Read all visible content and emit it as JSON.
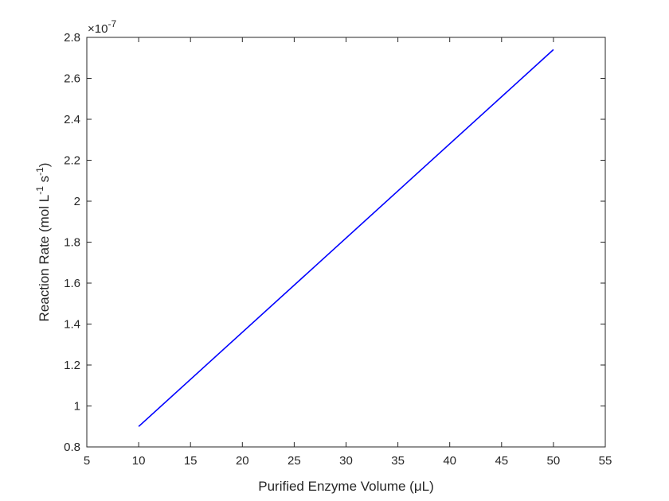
{
  "chart_data": {
    "type": "line",
    "title": "",
    "xlabel": "Purified Enzyme Volume (μL)",
    "ylabel_parts": {
      "main": "Reaction Rate (mol L",
      "exp1": "-1",
      "mid": " s",
      "exp2": "-1",
      "end": ")"
    },
    "y_multiplier": {
      "base": "×10",
      "exponent": "-7"
    },
    "xlim": [
      5,
      55
    ],
    "ylim": [
      0.8,
      2.8
    ],
    "xticks": [
      5,
      10,
      15,
      20,
      25,
      30,
      35,
      40,
      45,
      50,
      55
    ],
    "yticks": [
      0.8,
      1.0,
      1.2,
      1.4,
      1.6,
      1.8,
      2.0,
      2.2,
      2.4,
      2.6,
      2.8
    ],
    "xtick_labels": [
      "5",
      "10",
      "15",
      "20",
      "25",
      "30",
      "35",
      "40",
      "45",
      "50",
      "55"
    ],
    "ytick_labels": [
      "0.8",
      "1",
      "1.2",
      "1.4",
      "1.6",
      "1.8",
      "2",
      "2.2",
      "2.4",
      "2.6",
      "2.8"
    ],
    "grid": false,
    "series": [
      {
        "color": "#0000ff",
        "x": [
          10,
          50
        ],
        "y": [
          0.9,
          2.74
        ]
      }
    ]
  }
}
